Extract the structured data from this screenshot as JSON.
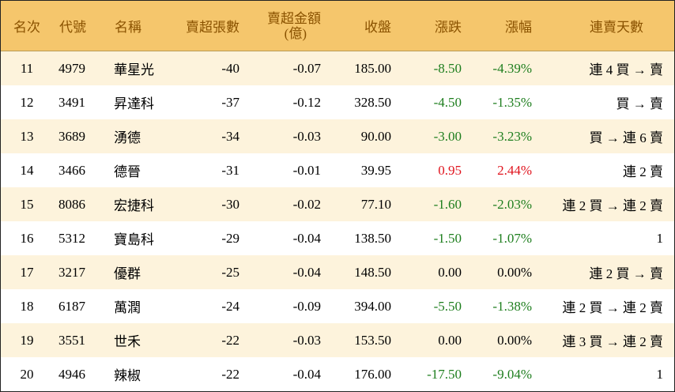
{
  "columns": {
    "rank": "名次",
    "code": "代號",
    "name": "名稱",
    "lots": "賣超張數",
    "amount_line1": "賣超金額",
    "amount_line2": "(億)",
    "close": "收盤",
    "change": "漲跌",
    "pct": "漲幅",
    "days": "連賣天數"
  },
  "colors": {
    "header_bg": "#f5c66c",
    "header_text": "#8a5200",
    "alt_row_bg": "#fdf3dc",
    "down": "#1e7e1e",
    "up": "#e0141e"
  },
  "rows": [
    {
      "rank": "11",
      "code": "4979",
      "name": "華星光",
      "lots": "-40",
      "amount": "-0.07",
      "close": "185.00",
      "change": "-8.50",
      "pct": "-4.39%",
      "trend": "neg",
      "days": "連 4 買 → 賣"
    },
    {
      "rank": "12",
      "code": "3491",
      "name": "昇達科",
      "lots": "-37",
      "amount": "-0.12",
      "close": "328.50",
      "change": "-4.50",
      "pct": "-1.35%",
      "trend": "neg",
      "days": "買 → 賣"
    },
    {
      "rank": "13",
      "code": "3689",
      "name": "湧德",
      "lots": "-34",
      "amount": "-0.03",
      "close": "90.00",
      "change": "-3.00",
      "pct": "-3.23%",
      "trend": "neg",
      "days": "買 → 連 6 賣"
    },
    {
      "rank": "14",
      "code": "3466",
      "name": "德晉",
      "lots": "-31",
      "amount": "-0.01",
      "close": "39.95",
      "change": "0.95",
      "pct": "2.44%",
      "trend": "pos",
      "days": "連 2 賣"
    },
    {
      "rank": "15",
      "code": "8086",
      "name": "宏捷科",
      "lots": "-30",
      "amount": "-0.02",
      "close": "77.10",
      "change": "-1.60",
      "pct": "-2.03%",
      "trend": "neg",
      "days": "連 2 買 → 連 2 賣"
    },
    {
      "rank": "16",
      "code": "5312",
      "name": "寶島科",
      "lots": "-29",
      "amount": "-0.04",
      "close": "138.50",
      "change": "-1.50",
      "pct": "-1.07%",
      "trend": "neg",
      "days": "1"
    },
    {
      "rank": "17",
      "code": "3217",
      "name": "優群",
      "lots": "-25",
      "amount": "-0.04",
      "close": "148.50",
      "change": "0.00",
      "pct": "0.00%",
      "trend": "flat",
      "days": "連 2 買 → 賣"
    },
    {
      "rank": "18",
      "code": "6187",
      "name": "萬潤",
      "lots": "-24",
      "amount": "-0.09",
      "close": "394.00",
      "change": "-5.50",
      "pct": "-1.38%",
      "trend": "neg",
      "days": "連 2 買 → 連 2 賣"
    },
    {
      "rank": "19",
      "code": "3551",
      "name": "世禾",
      "lots": "-22",
      "amount": "-0.03",
      "close": "153.50",
      "change": "0.00",
      "pct": "0.00%",
      "trend": "flat",
      "days": "連 3 買 → 連 2 賣"
    },
    {
      "rank": "20",
      "code": "4946",
      "name": "辣椒",
      "lots": "-22",
      "amount": "-0.04",
      "close": "176.00",
      "change": "-17.50",
      "pct": "-9.04%",
      "trend": "neg",
      "days": "1"
    }
  ]
}
